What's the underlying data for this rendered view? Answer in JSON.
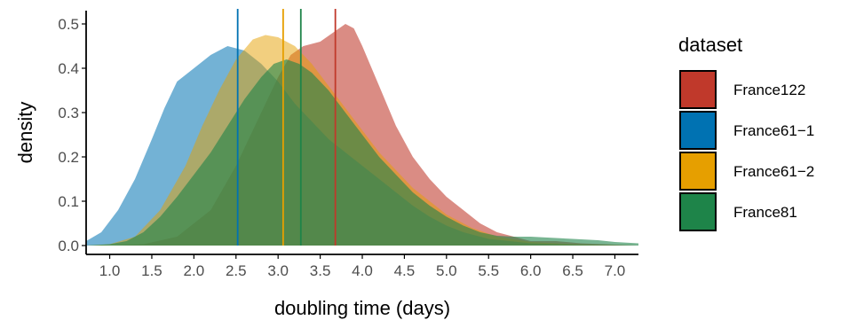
{
  "chart_data": {
    "type": "area",
    "xlabel": "doubling time (days)",
    "ylabel": "density",
    "xlim": [
      0.72,
      7.28
    ],
    "ylim": [
      -0.02,
      0.53
    ],
    "xticks": [
      "1.0",
      "1.5",
      "2.0",
      "2.5",
      "3.0",
      "3.5",
      "4.0",
      "4.5",
      "5.0",
      "5.5",
      "6.0",
      "6.5",
      "7.0"
    ],
    "yticks": [
      "0.0",
      "0.1",
      "0.2",
      "0.3",
      "0.4",
      "0.5"
    ],
    "grid": false,
    "legend": {
      "title": "dataset",
      "position": "right"
    },
    "series": [
      {
        "name": "France122",
        "color": "#c0392b",
        "fill_opacity": 0.58,
        "mean": 3.68,
        "points": [
          [
            0.72,
            0.0
          ],
          [
            1.0,
            0.0
          ],
          [
            1.4,
            0.003
          ],
          [
            1.8,
            0.02
          ],
          [
            2.2,
            0.08
          ],
          [
            2.5,
            0.18
          ],
          [
            2.8,
            0.3
          ],
          [
            3.0,
            0.38
          ],
          [
            3.15,
            0.43
          ],
          [
            3.3,
            0.45
          ],
          [
            3.5,
            0.46
          ],
          [
            3.65,
            0.48
          ],
          [
            3.8,
            0.5
          ],
          [
            3.9,
            0.49
          ],
          [
            4.0,
            0.45
          ],
          [
            4.2,
            0.36
          ],
          [
            4.4,
            0.27
          ],
          [
            4.6,
            0.2
          ],
          [
            4.8,
            0.15
          ],
          [
            5.0,
            0.11
          ],
          [
            5.2,
            0.08
          ],
          [
            5.4,
            0.05
          ],
          [
            5.6,
            0.03
          ],
          [
            5.8,
            0.02
          ],
          [
            6.0,
            0.01
          ],
          [
            6.3,
            0.01
          ],
          [
            6.6,
            0.005
          ],
          [
            7.0,
            0.002
          ],
          [
            7.28,
            0.0
          ]
        ]
      },
      {
        "name": "France61−1",
        "color": "#0072b2",
        "fill_opacity": 0.55,
        "mean": 2.52,
        "points": [
          [
            0.72,
            0.01
          ],
          [
            0.9,
            0.03
          ],
          [
            1.1,
            0.08
          ],
          [
            1.3,
            0.15
          ],
          [
            1.5,
            0.24
          ],
          [
            1.65,
            0.31
          ],
          [
            1.8,
            0.37
          ],
          [
            2.0,
            0.4
          ],
          [
            2.2,
            0.43
          ],
          [
            2.4,
            0.45
          ],
          [
            2.6,
            0.44
          ],
          [
            2.8,
            0.41
          ],
          [
            3.0,
            0.37
          ],
          [
            3.2,
            0.32
          ],
          [
            3.4,
            0.28
          ],
          [
            3.6,
            0.24
          ],
          [
            3.8,
            0.21
          ],
          [
            4.0,
            0.18
          ],
          [
            4.2,
            0.15
          ],
          [
            4.4,
            0.12
          ],
          [
            4.6,
            0.09
          ],
          [
            4.8,
            0.065
          ],
          [
            5.0,
            0.045
          ],
          [
            5.2,
            0.03
          ],
          [
            5.5,
            0.015
          ],
          [
            6.0,
            0.005
          ],
          [
            6.5,
            0.002
          ],
          [
            7.28,
            0.0
          ]
        ]
      },
      {
        "name": "France61−2",
        "color": "#e69f00",
        "fill_opacity": 0.5,
        "mean": 3.06,
        "points": [
          [
            0.72,
            0.0
          ],
          [
            1.0,
            0.003
          ],
          [
            1.3,
            0.02
          ],
          [
            1.6,
            0.08
          ],
          [
            1.9,
            0.18
          ],
          [
            2.1,
            0.27
          ],
          [
            2.3,
            0.35
          ],
          [
            2.5,
            0.42
          ],
          [
            2.7,
            0.465
          ],
          [
            2.85,
            0.475
          ],
          [
            3.0,
            0.47
          ],
          [
            3.2,
            0.45
          ],
          [
            3.4,
            0.41
          ],
          [
            3.6,
            0.36
          ],
          [
            3.8,
            0.31
          ],
          [
            4.0,
            0.26
          ],
          [
            4.2,
            0.21
          ],
          [
            4.4,
            0.17
          ],
          [
            4.6,
            0.13
          ],
          [
            4.8,
            0.1
          ],
          [
            5.0,
            0.07
          ],
          [
            5.3,
            0.04
          ],
          [
            5.6,
            0.02
          ],
          [
            6.0,
            0.008
          ],
          [
            6.5,
            0.003
          ],
          [
            7.28,
            0.0
          ]
        ]
      },
      {
        "name": "France81",
        "color": "#1e8449",
        "fill_opacity": 0.6,
        "mean": 3.27,
        "points": [
          [
            0.72,
            0.0
          ],
          [
            1.0,
            0.003
          ],
          [
            1.2,
            0.01
          ],
          [
            1.4,
            0.03
          ],
          [
            1.6,
            0.065
          ],
          [
            1.8,
            0.11
          ],
          [
            2.0,
            0.16
          ],
          [
            2.2,
            0.21
          ],
          [
            2.4,
            0.27
          ],
          [
            2.6,
            0.33
          ],
          [
            2.8,
            0.38
          ],
          [
            2.95,
            0.41
          ],
          [
            3.1,
            0.42
          ],
          [
            3.25,
            0.41
          ],
          [
            3.4,
            0.39
          ],
          [
            3.6,
            0.35
          ],
          [
            3.8,
            0.3
          ],
          [
            4.0,
            0.25
          ],
          [
            4.2,
            0.2
          ],
          [
            4.4,
            0.16
          ],
          [
            4.6,
            0.12
          ],
          [
            4.8,
            0.09
          ],
          [
            5.0,
            0.065
          ],
          [
            5.2,
            0.045
          ],
          [
            5.4,
            0.03
          ],
          [
            5.6,
            0.022
          ],
          [
            5.8,
            0.02
          ],
          [
            6.0,
            0.02
          ],
          [
            6.2,
            0.018
          ],
          [
            6.5,
            0.015
          ],
          [
            6.8,
            0.012
          ],
          [
            7.0,
            0.008
          ],
          [
            7.28,
            0.005
          ]
        ]
      }
    ]
  }
}
